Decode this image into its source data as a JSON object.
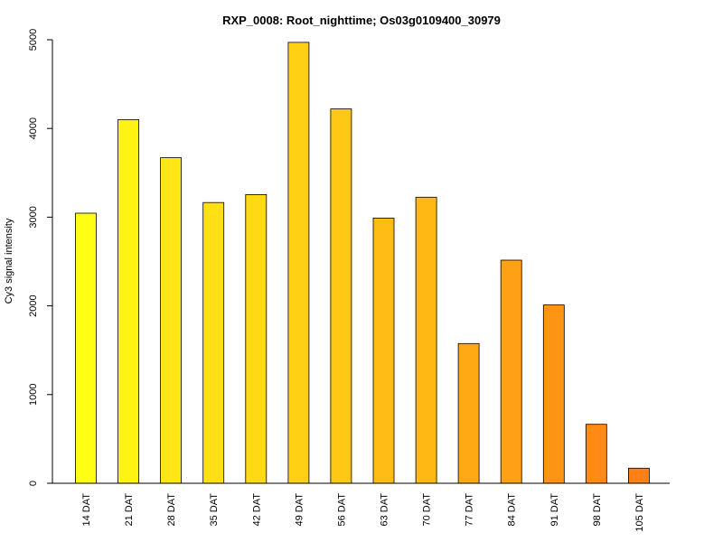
{
  "chart_data": {
    "type": "bar",
    "title": "RXP_0008: Root_nighttime; Os03g0109400_30979",
    "xlabel": "",
    "ylabel": "Cy3 signal intensity",
    "ylim": [
      0,
      5000
    ],
    "yticks": [
      0,
      1000,
      2000,
      3000,
      4000,
      5000
    ],
    "grid": false,
    "legend": "none",
    "categories": [
      "14 DAT",
      "21 DAT",
      "28 DAT",
      "35 DAT",
      "42 DAT",
      "49 DAT",
      "56 DAT",
      "63 DAT",
      "70 DAT",
      "77 DAT",
      "84 DAT",
      "91 DAT",
      "98 DAT",
      "105 DAT"
    ],
    "values": [
      3045,
      4100,
      3670,
      3165,
      3255,
      4970,
      4220,
      2990,
      3225,
      1575,
      2515,
      2010,
      665,
      170
    ],
    "colors": [
      "#ffff14",
      "#fff314",
      "#ffe614",
      "#ffe014",
      "#ffd914",
      "#ffd014",
      "#ffc814",
      "#ffbc14",
      "#ffb814",
      "#ffa914",
      "#ffa114",
      "#ff9314",
      "#ff8a14",
      "#ff8014"
    ]
  }
}
